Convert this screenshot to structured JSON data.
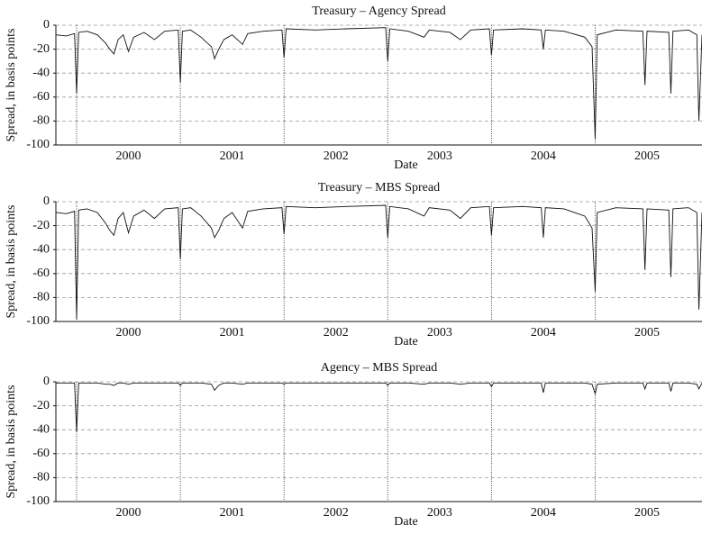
{
  "chart_data": [
    {
      "type": "line",
      "title": "Treasury – Agency Spread",
      "xlabel": "Date",
      "ylabel": "Spread, in basis points",
      "x": [
        1999.8,
        1999.9,
        1999.98,
        2000.0,
        2000.02,
        2000.1,
        2000.2,
        2000.28,
        2000.32,
        2000.36,
        2000.4,
        2000.45,
        2000.5,
        2000.55,
        2000.65,
        2000.75,
        2000.85,
        2000.98,
        2001.0,
        2001.02,
        2001.1,
        2001.2,
        2001.3,
        2001.33,
        2001.37,
        2001.42,
        2001.5,
        2001.6,
        2001.65,
        2001.8,
        2001.98,
        2002.0,
        2002.02,
        2002.3,
        2002.6,
        2002.98,
        2003.0,
        2003.02,
        2003.2,
        2003.35,
        2003.4,
        2003.6,
        2003.7,
        2003.8,
        2003.98,
        2004.0,
        2004.02,
        2004.3,
        2004.48,
        2004.5,
        2004.52,
        2004.7,
        2004.9,
        2004.97,
        2005.0,
        2005.02,
        2005.2,
        2005.46,
        2005.48,
        2005.5,
        2005.71,
        2005.73,
        2005.75,
        2005.9,
        2005.98,
        2006.0,
        2006.03
      ],
      "values": [
        -8,
        -9,
        -7,
        -57,
        -6,
        -5,
        -8,
        -15,
        -20,
        -24,
        -12,
        -8,
        -22,
        -10,
        -6,
        -12,
        -5,
        -4,
        -48,
        -5,
        -4,
        -10,
        -18,
        -28,
        -20,
        -12,
        -8,
        -16,
        -7,
        -5,
        -4,
        -27,
        -3,
        -4,
        -3,
        -2,
        -30,
        -3,
        -5,
        -10,
        -4,
        -6,
        -12,
        -4,
        -3,
        -25,
        -4,
        -3,
        -4,
        -20,
        -4,
        -5,
        -10,
        -18,
        -95,
        -8,
        -4,
        -5,
        -50,
        -5,
        -6,
        -57,
        -5,
        -4,
        -8,
        -80,
        -8
      ],
      "color": "#111111",
      "xlim": [
        1999.8,
        2006.03
      ],
      "xticks": [
        {
          "value": 2000.5,
          "label": "2000"
        },
        {
          "value": 2001.5,
          "label": "2001"
        },
        {
          "value": 2002.5,
          "label": "2002"
        },
        {
          "value": 2003.5,
          "label": "2003"
        },
        {
          "value": 2004.5,
          "label": "2004"
        },
        {
          "value": 2005.5,
          "label": "2005"
        }
      ],
      "vlines": [
        2000,
        2001,
        2002,
        2003,
        2004,
        2005
      ],
      "ylim": [
        -100,
        0
      ],
      "yticks": [
        0,
        -20,
        -40,
        -60,
        -80,
        -100
      ],
      "grid": true
    },
    {
      "type": "line",
      "title": "Treasury – MBS Spread",
      "xlabel": "Date",
      "ylabel": "Spread, in basis points",
      "x": [
        1999.8,
        1999.9,
        1999.98,
        2000.0,
        2000.02,
        2000.1,
        2000.2,
        2000.28,
        2000.32,
        2000.36,
        2000.4,
        2000.45,
        2000.5,
        2000.55,
        2000.65,
        2000.75,
        2000.85,
        2000.98,
        2001.0,
        2001.02,
        2001.1,
        2001.2,
        2001.3,
        2001.33,
        2001.37,
        2001.42,
        2001.5,
        2001.6,
        2001.65,
        2001.8,
        2001.98,
        2002.0,
        2002.02,
        2002.3,
        2002.6,
        2002.98,
        2003.0,
        2003.02,
        2003.2,
        2003.35,
        2003.4,
        2003.6,
        2003.7,
        2003.8,
        2003.98,
        2004.0,
        2004.02,
        2004.3,
        2004.48,
        2004.5,
        2004.52,
        2004.7,
        2004.9,
        2004.97,
        2005.0,
        2005.02,
        2005.2,
        2005.46,
        2005.48,
        2005.5,
        2005.71,
        2005.73,
        2005.75,
        2005.9,
        2005.98,
        2006.0,
        2006.03
      ],
      "values": [
        -9,
        -10,
        -8,
        -98,
        -7,
        -6,
        -9,
        -18,
        -24,
        -28,
        -14,
        -9,
        -26,
        -12,
        -7,
        -14,
        -6,
        -5,
        -48,
        -6,
        -5,
        -12,
        -22,
        -30,
        -24,
        -14,
        -9,
        -22,
        -8,
        -6,
        -5,
        -27,
        -4,
        -5,
        -4,
        -3,
        -30,
        -4,
        -6,
        -12,
        -5,
        -7,
        -14,
        -5,
        -4,
        -28,
        -5,
        -4,
        -5,
        -30,
        -5,
        -6,
        -12,
        -22,
        -75,
        -9,
        -5,
        -6,
        -57,
        -6,
        -7,
        -63,
        -6,
        -5,
        -9,
        -90,
        -9
      ],
      "color": "#111111",
      "xlim": [
        1999.8,
        2006.03
      ],
      "xticks": [
        {
          "value": 2000.5,
          "label": "2000"
        },
        {
          "value": 2001.5,
          "label": "2001"
        },
        {
          "value": 2002.5,
          "label": "2002"
        },
        {
          "value": 2003.5,
          "label": "2003"
        },
        {
          "value": 2004.5,
          "label": "2004"
        },
        {
          "value": 2005.5,
          "label": "2005"
        }
      ],
      "vlines": [
        2000,
        2001,
        2002,
        2003,
        2004,
        2005
      ],
      "ylim": [
        -100,
        0
      ],
      "yticks": [
        0,
        -20,
        -40,
        -60,
        -80,
        -100
      ],
      "grid": true
    },
    {
      "type": "line",
      "title": "Agency – MBS Spread",
      "xlabel": "Date",
      "ylabel": "Spread, in basis points",
      "x": [
        1999.8,
        1999.9,
        1999.98,
        2000.0,
        2000.02,
        2000.1,
        2000.2,
        2000.28,
        2000.32,
        2000.36,
        2000.4,
        2000.45,
        2000.5,
        2000.55,
        2000.65,
        2000.75,
        2000.85,
        2000.98,
        2001.0,
        2001.02,
        2001.1,
        2001.2,
        2001.3,
        2001.33,
        2001.37,
        2001.42,
        2001.5,
        2001.6,
        2001.65,
        2001.8,
        2001.98,
        2002.0,
        2002.02,
        2002.3,
        2002.6,
        2002.98,
        2003.0,
        2003.02,
        2003.2,
        2003.35,
        2003.4,
        2003.6,
        2003.7,
        2003.8,
        2003.98,
        2004.0,
        2004.02,
        2004.3,
        2004.48,
        2004.5,
        2004.52,
        2004.7,
        2004.9,
        2004.97,
        2005.0,
        2005.02,
        2005.2,
        2005.46,
        2005.48,
        2005.5,
        2005.71,
        2005.73,
        2005.75,
        2005.9,
        2005.98,
        2006.0,
        2006.03
      ],
      "values": [
        -1,
        -1,
        -1,
        -42,
        -1,
        -1,
        -1,
        -2,
        -2,
        -3,
        -1,
        -1,
        -2,
        -1,
        -1,
        -1,
        -1,
        -1,
        -3,
        -1,
        -1,
        -1,
        -2,
        -7,
        -3,
        -1,
        -1,
        -2,
        -1,
        -1,
        -1,
        -2,
        -1,
        -1,
        -1,
        -1,
        -3,
        -1,
        -1,
        -2,
        -1,
        -1,
        -2,
        -1,
        -1,
        -4,
        -1,
        -1,
        -1,
        -9,
        -1,
        -1,
        -1,
        -2,
        -10,
        -2,
        -1,
        -1,
        -6,
        -1,
        -1,
        -8,
        -1,
        -1,
        -2,
        -6,
        -1
      ],
      "color": "#111111",
      "xlim": [
        1999.8,
        2006.03
      ],
      "xticks": [
        {
          "value": 2000.5,
          "label": "2000"
        },
        {
          "value": 2001.5,
          "label": "2001"
        },
        {
          "value": 2002.5,
          "label": "2002"
        },
        {
          "value": 2003.5,
          "label": "2003"
        },
        {
          "value": 2004.5,
          "label": "2004"
        },
        {
          "value": 2005.5,
          "label": "2005"
        }
      ],
      "vlines": [
        2000,
        2001,
        2002,
        2003,
        2004,
        2005
      ],
      "ylim": [
        -100,
        0
      ],
      "yticks": [
        0,
        -20,
        -40,
        -60,
        -80,
        -100
      ],
      "grid": true
    }
  ]
}
